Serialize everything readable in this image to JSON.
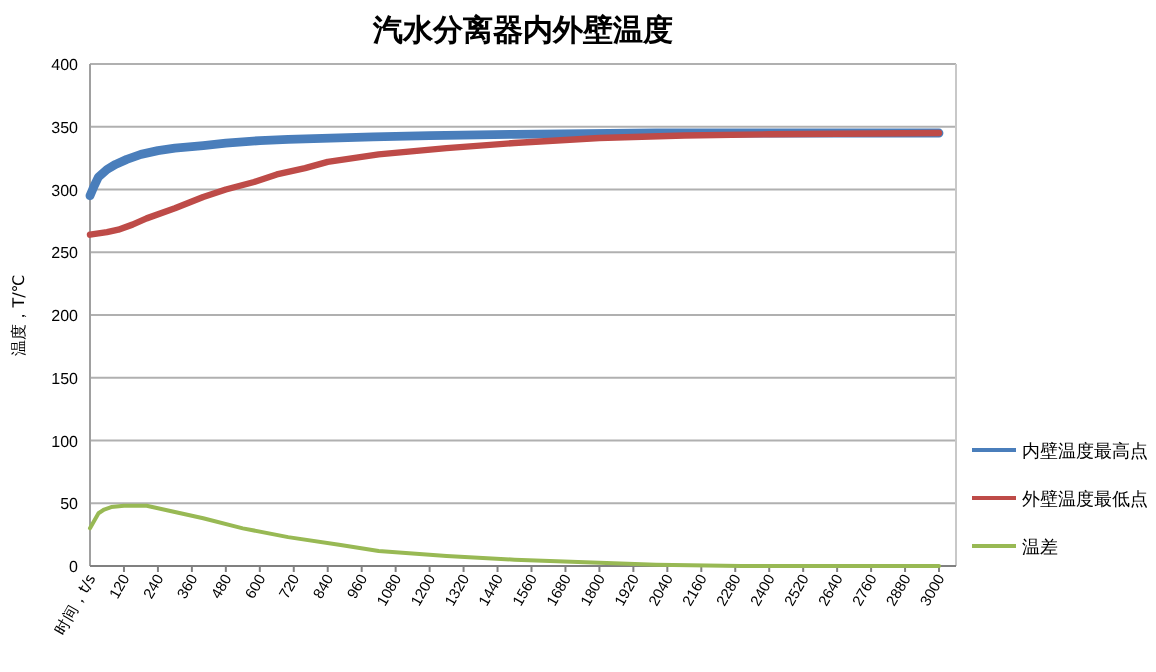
{
  "chart_data": {
    "type": "line",
    "title": "汽水分离器内外壁温度",
    "xlabel": "时间，t/s",
    "ylabel": "温度，T/℃",
    "xlim": [
      0,
      3060
    ],
    "xticks": [
      120,
      240,
      360,
      480,
      600,
      720,
      840,
      960,
      1080,
      1200,
      1320,
      1440,
      1560,
      1680,
      1800,
      1920,
      2040,
      2160,
      2280,
      2400,
      2520,
      2640,
      2760,
      2880,
      3000
    ],
    "ylim": [
      0,
      400
    ],
    "yticks": [
      0,
      50,
      100,
      150,
      200,
      250,
      300,
      350,
      400
    ],
    "grid": "y",
    "legend": "right",
    "marker": "none",
    "line_style": "solid",
    "series": [
      {
        "name": "内壁温度最高点",
        "color": "#4a7ebb",
        "x": [
          0,
          15,
          30,
          60,
          90,
          130,
          180,
          240,
          300,
          400,
          480,
          600,
          700,
          850,
          1000,
          1200,
          1500,
          2000,
          2500,
          3000
        ],
        "values": [
          295,
          303,
          310,
          316,
          320,
          324,
          328,
          331,
          333,
          335,
          337,
          339,
          340,
          341,
          342,
          343,
          344,
          345,
          345,
          345
        ]
      },
      {
        "name": "外壁温度最低点",
        "color": "#be4b48",
        "x": [
          0,
          60,
          100,
          150,
          200,
          300,
          400,
          480,
          580,
          660,
          760,
          840,
          1020,
          1260,
          1500,
          1800,
          2100,
          2400,
          3000
        ],
        "values": [
          264,
          266,
          268,
          272,
          277,
          285,
          294,
          300,
          306,
          312,
          317,
          322,
          328,
          333,
          337,
          341,
          343,
          344,
          345
        ]
      },
      {
        "name": "温差",
        "color": "#98b954",
        "x": [
          0,
          15,
          30,
          50,
          75,
          120,
          200,
          280,
          400,
          540,
          700,
          880,
          1020,
          1260,
          1500,
          1750,
          2000,
          2300,
          3000
        ],
        "values": [
          30,
          36,
          42,
          45,
          47,
          48,
          48,
          44,
          38,
          30,
          23,
          17,
          12,
          8,
          5,
          3,
          1,
          0,
          0
        ]
      }
    ]
  }
}
